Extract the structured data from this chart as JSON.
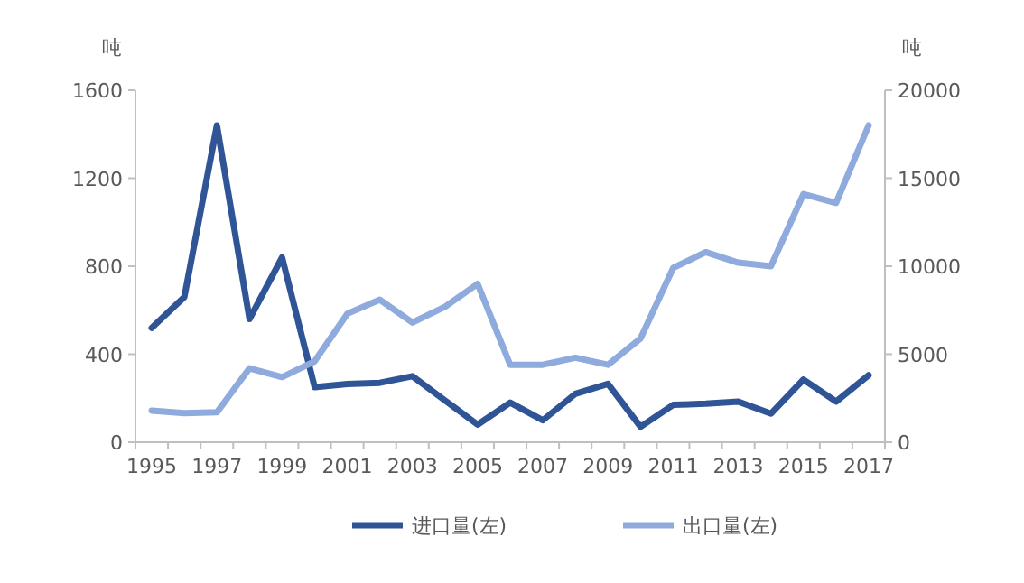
{
  "chart_data": {
    "type": "line",
    "ylabel": "吨",
    "y2label": "吨",
    "categories": [
      "1995",
      null,
      "1997",
      null,
      "1999",
      null,
      "2001",
      null,
      "2003",
      null,
      "2005",
      null,
      "2007",
      null,
      "2009",
      null,
      "2011",
      null,
      "2013",
      null,
      "2015",
      null,
      "2017"
    ],
    "series": [
      {
        "name": "进口量(左)",
        "color": "#2f5597",
        "values": [
          520,
          660,
          1440,
          560,
          840,
          250,
          265,
          270,
          300,
          190,
          80,
          180,
          100,
          220,
          265,
          70,
          170,
          175,
          185,
          130,
          285,
          185,
          305
        ]
      },
      {
        "name": "出口量(左)",
        "color": "#8faadc",
        "axis": "y2",
        "values": [
          1800,
          1650,
          1700,
          4200,
          3700,
          4600,
          7300,
          8100,
          6800,
          7700,
          9000,
          4400,
          4400,
          4800,
          4400,
          5900,
          9900,
          10800,
          10200,
          10000,
          14100,
          13600,
          18000
        ]
      }
    ],
    "ylim": [
      0,
      1600
    ],
    "yticks": [
      0,
      400,
      800,
      1200,
      1600
    ],
    "y2lim": [
      0,
      20000
    ],
    "y2ticks": [
      0,
      5000,
      10000,
      15000,
      20000
    ],
    "legend": "bottom",
    "grid": false,
    "marker": "none",
    "line_style": "solid"
  }
}
